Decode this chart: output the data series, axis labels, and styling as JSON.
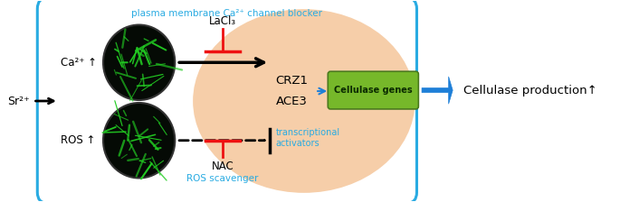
{
  "fig_width": 6.85,
  "fig_height": 2.24,
  "dpi": 100,
  "bg_color": "#ffffff",
  "blue_border_color": "#29ABE2",
  "blue_text_color": "#29ABE2",
  "green_box_color": "#76B82A",
  "peach_ellipse_color": "#F5C9A0",
  "arrow_blue_color": "#1E7FD8",
  "red_color": "#EE1111",
  "black": "#000000",
  "title_text": "plasma membrane Ca²⁺ channel blocker",
  "lacl3_text": "LaCl₃",
  "nac_text": "NAC",
  "ros_scavenger_text": "ROS scavenger",
  "sr2_text": "Sr²⁺",
  "ca2_text": "Ca²⁺ ↑",
  "ros_text": "ROS ↑",
  "crz1_text": "CRZ1",
  "ace3_text": "ACE3",
  "transcriptional_text": "transcriptional\nactivators",
  "cellulase_genes_text": "Cellulase genes",
  "cellulase_production_text": "Cellulase production↑"
}
